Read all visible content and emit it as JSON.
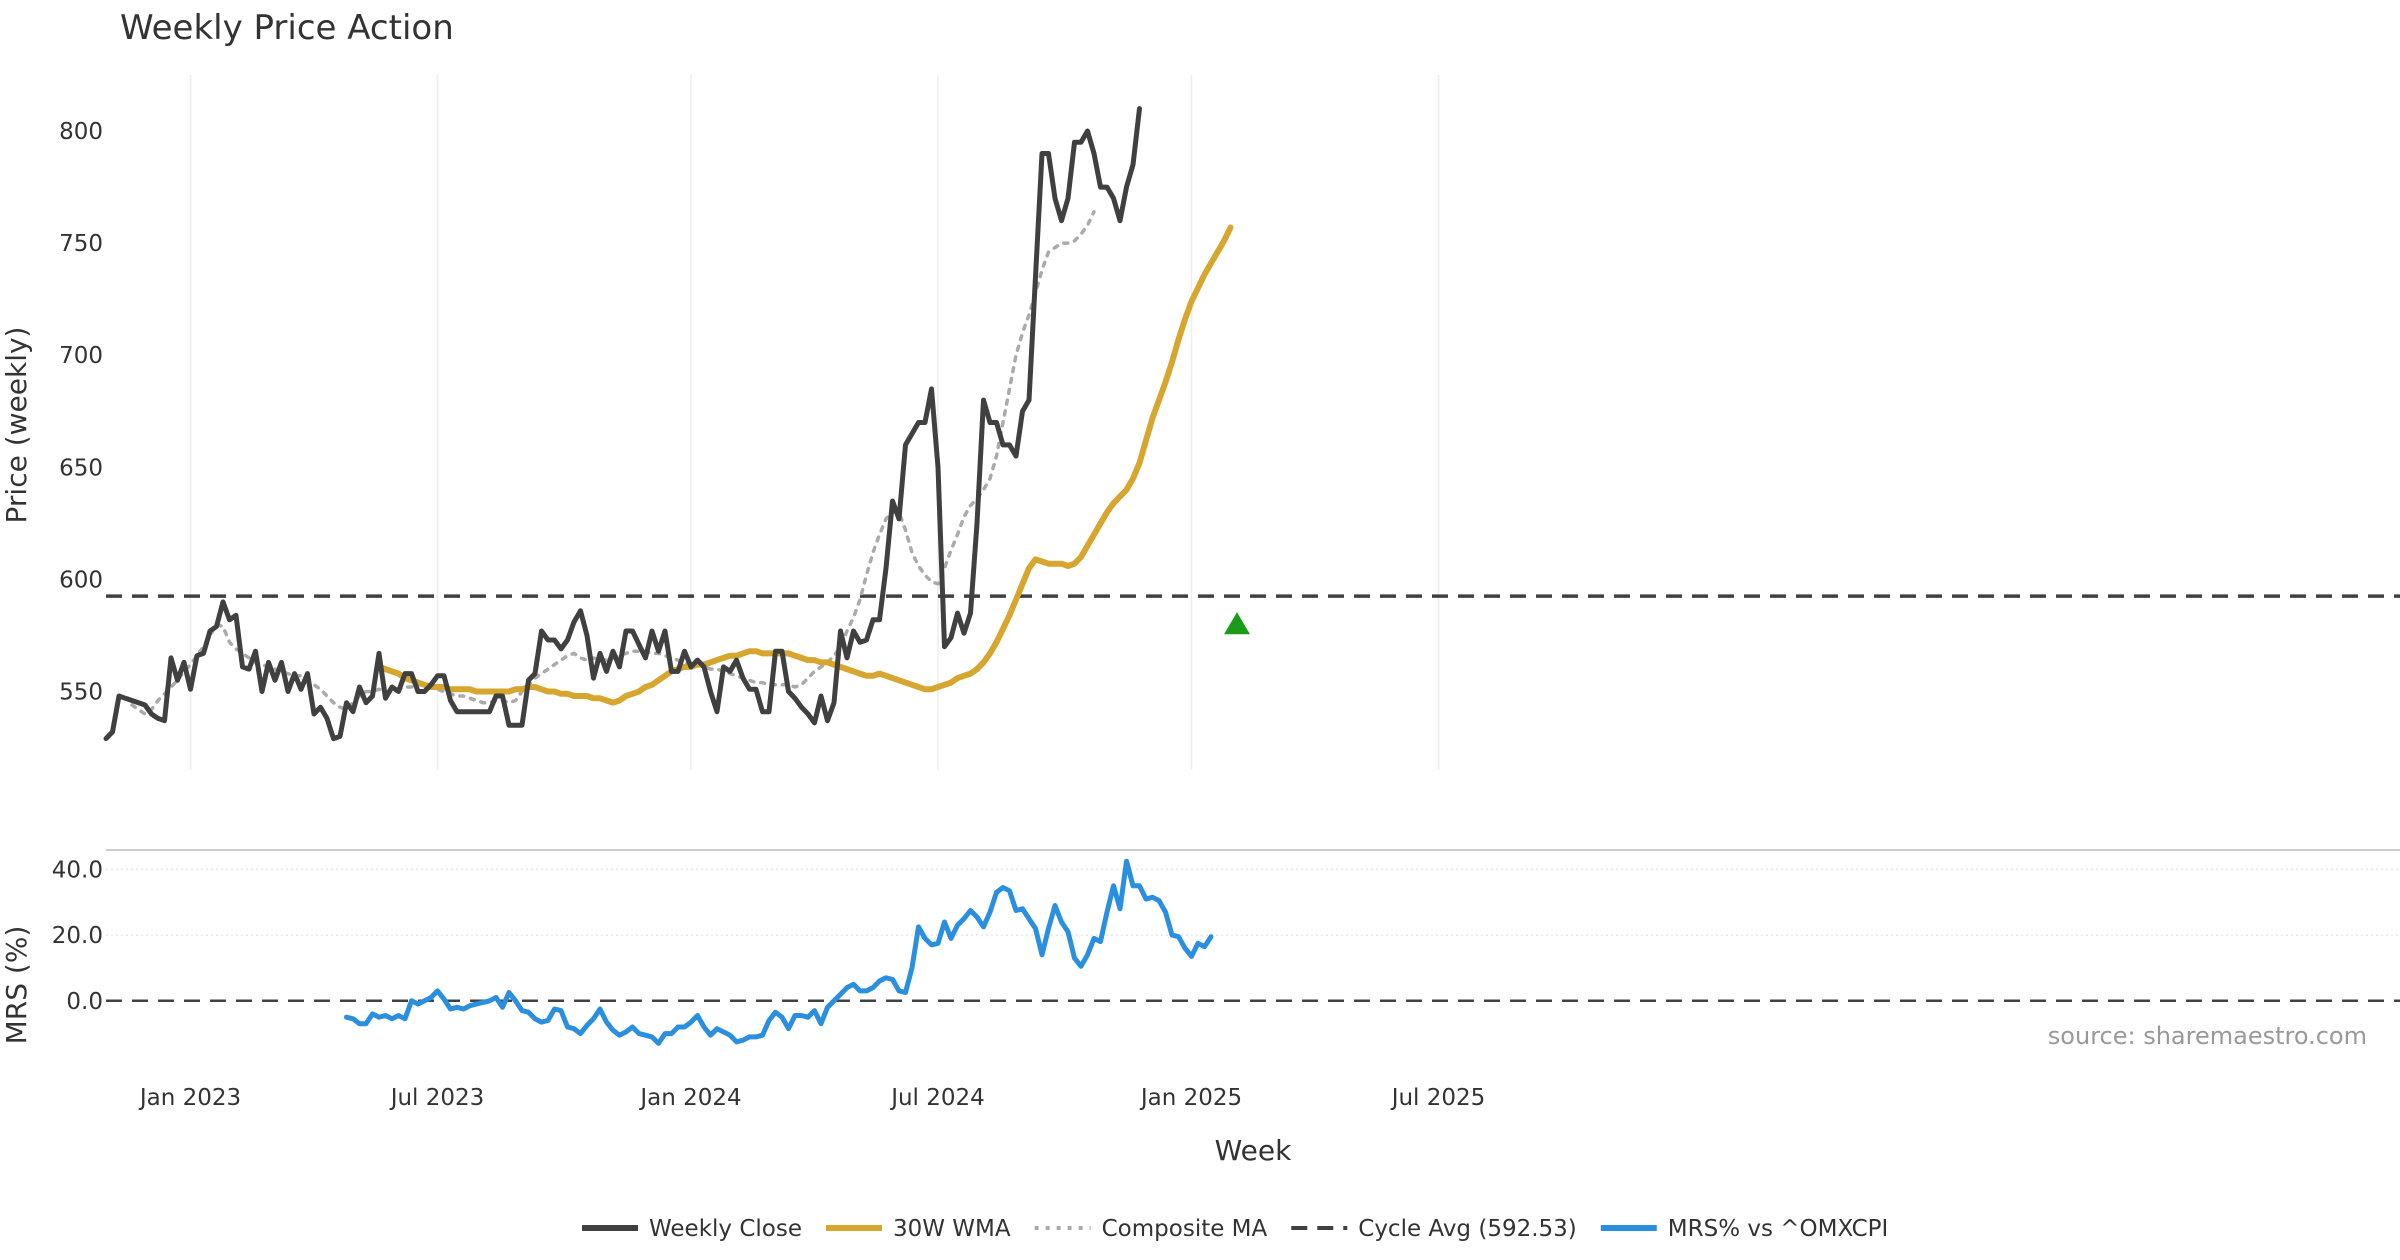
{
  "chart_data": {
    "type": "line",
    "title": "Weekly Price Action",
    "xlabel": "Week",
    "x_ticks": [
      {
        "label": "Jan 2023",
        "week": 13
      },
      {
        "label": "Jul 2023",
        "week": 51
      },
      {
        "label": "Jan 2024",
        "week": 90
      },
      {
        "label": "Jul 2024",
        "week": 128
      },
      {
        "label": "Jan 2025",
        "week": 167
      },
      {
        "label": "Jul 2025",
        "week": 205
      }
    ],
    "price_panel": {
      "ylabel": "Price (weekly)",
      "ylim": [
        515,
        825
      ],
      "yticks": [
        550,
        600,
        650,
        700,
        750,
        800
      ],
      "yticks_label": [
        "550",
        "600",
        "650",
        "700",
        "750",
        "800"
      ],
      "series": [
        {
          "name": "Weekly Close",
          "color": "#404040",
          "style": "solid",
          "start_week": 0,
          "values": [
            529,
            532,
            548,
            547,
            546,
            545,
            544,
            540,
            538,
            537,
            565,
            555,
            563,
            551,
            566,
            567,
            577,
            579,
            590,
            582,
            584,
            561,
            560,
            568,
            550,
            563,
            555,
            563,
            550,
            558,
            551,
            558,
            540,
            543,
            538,
            529,
            530,
            545,
            541,
            552,
            545,
            548,
            567,
            547,
            552,
            550,
            558,
            558,
            550,
            550,
            553,
            557,
            557,
            546,
            541,
            541,
            541,
            541,
            541,
            541,
            548,
            548,
            535,
            535,
            535,
            555,
            558,
            577,
            573,
            573,
            569,
            573,
            581,
            586,
            575,
            556,
            567,
            559,
            568,
            561,
            577,
            577,
            571,
            565,
            577,
            568,
            577,
            559,
            559,
            568,
            561,
            564,
            561,
            550,
            541,
            561,
            559,
            564,
            556,
            551,
            551,
            541,
            541,
            568,
            568,
            550,
            547,
            543,
            540,
            536,
            548,
            537,
            545,
            577,
            565,
            577,
            572,
            573,
            582,
            582,
            605,
            635,
            627,
            660,
            665,
            670,
            670,
            685,
            650,
            570,
            574,
            585,
            576,
            585,
            625,
            680,
            670,
            670,
            660,
            660,
            655,
            675,
            680,
            735,
            790,
            790,
            770,
            760,
            770,
            795,
            795,
            800,
            790,
            775,
            775,
            770,
            760,
            775,
            785,
            810
          ]
        },
        {
          "name": "30W WMA",
          "color": "#d6a62e",
          "style": "solid",
          "start_week": 42,
          "values": [
            561,
            560,
            559,
            558,
            556,
            555,
            554,
            553,
            552,
            552,
            552,
            551,
            551,
            551,
            551,
            550,
            550,
            550,
            550,
            550,
            550,
            551,
            551,
            552,
            552,
            551,
            550,
            550,
            549,
            549,
            548,
            548,
            548,
            547,
            547,
            546,
            545,
            546,
            548,
            549,
            550,
            552,
            553,
            555,
            557,
            559,
            560,
            561,
            561,
            562,
            562,
            563,
            564,
            565,
            566,
            566,
            567,
            568,
            568,
            567,
            567,
            567,
            567,
            567,
            566,
            565,
            564,
            564,
            563,
            563,
            562,
            561,
            560,
            559,
            558,
            557,
            557,
            558,
            557,
            556,
            555,
            554,
            553,
            552,
            551,
            551,
            552,
            553,
            554,
            556,
            557,
            558,
            560,
            563,
            567,
            572,
            578,
            584,
            591,
            598,
            605,
            609,
            608,
            607,
            607,
            607,
            606,
            607,
            610,
            615,
            620,
            625,
            630,
            634,
            637,
            640,
            645,
            652,
            662,
            672,
            680,
            688,
            697,
            707,
            716,
            724,
            730,
            736,
            741,
            746,
            751,
            757
          ]
        },
        {
          "name": "Composite MA",
          "color": "#aaaaaa",
          "style": "dotted",
          "start_week": 4,
          "values": [
            544,
            542,
            540,
            542,
            546,
            549,
            552,
            555,
            559,
            562,
            566,
            570,
            575,
            580,
            579,
            572,
            569,
            567,
            565,
            563,
            562,
            561,
            560,
            559,
            558,
            557,
            557,
            555,
            553,
            551,
            548,
            545,
            543,
            542,
            545,
            548,
            550,
            550,
            551,
            550,
            550,
            551,
            552,
            552,
            553,
            553,
            553,
            551,
            550,
            549,
            548,
            548,
            547,
            546,
            545,
            545,
            546,
            546,
            545,
            546,
            550,
            553,
            556,
            558,
            560,
            562,
            564,
            566,
            567,
            565,
            564,
            565,
            564,
            564,
            565,
            566,
            567,
            568,
            568,
            568,
            567,
            567,
            566,
            565,
            564,
            563,
            562,
            562,
            561,
            560,
            560,
            559,
            558,
            557,
            556,
            555,
            554,
            554,
            553,
            553,
            553,
            553,
            552,
            553,
            556,
            559,
            561,
            563,
            566,
            570,
            577,
            583,
            591,
            602,
            612,
            620,
            627,
            630,
            630,
            622,
            612,
            606,
            602,
            599,
            598,
            605,
            613,
            620,
            628,
            633,
            636,
            640,
            645,
            655,
            670,
            685,
            700,
            710,
            718,
            728,
            738,
            746,
            748,
            750,
            750,
            751,
            754,
            758,
            764
          ]
        },
        {
          "name": "Cycle Avg (592.53)",
          "color": "#404040",
          "style": "dashed",
          "constant": 592.53
        }
      ],
      "markers": [
        {
          "type": "triangle-up",
          "color": "#1a9c1a",
          "week": 174,
          "value": 580
        }
      ]
    },
    "mrs_panel": {
      "ylabel": "MRS (%)",
      "ylim": [
        -15,
        45
      ],
      "yticks": [
        0,
        20,
        40
      ],
      "yticks_label": [
        "0.0",
        "20.0",
        "40.0"
      ],
      "zero_line": 0,
      "series": [
        {
          "name": "MRS% vs ^OMXCPI",
          "color": "#2b8fe0",
          "style": "solid",
          "start_week": 37,
          "values": [
            -5,
            -5.5,
            -7,
            -7,
            -4,
            -5,
            -4.5,
            -5.5,
            -4.5,
            -5.5,
            0,
            -1,
            0,
            1,
            3,
            0.5,
            -2.5,
            -2,
            -2.5,
            -1.5,
            -1,
            -0.5,
            0,
            1,
            -2,
            2.5,
            0,
            -3,
            -3.5,
            -5.5,
            -6.5,
            -6,
            -2.5,
            -3,
            -8,
            -8.5,
            -10,
            -7.5,
            -5.5,
            -2.5,
            -6.5,
            -9,
            -10.5,
            -9.5,
            -8,
            -10,
            -10.5,
            -11,
            -13,
            -10,
            -10,
            -8,
            -8,
            -6.5,
            -4.5,
            -8,
            -10.5,
            -8.5,
            -9.5,
            -10.5,
            -12.5,
            -12,
            -11,
            -11,
            -10.5,
            -6,
            -3.5,
            -5,
            -8.5,
            -4.5,
            -4.5,
            -5,
            -3,
            -7,
            -2,
            0,
            2,
            4,
            5,
            3,
            3,
            4,
            6,
            7,
            6.5,
            3,
            2.5,
            10,
            22.5,
            19,
            17,
            17.5,
            24,
            19,
            23,
            25,
            27.5,
            25.5,
            22.5,
            27,
            33,
            34.5,
            33.5,
            27.5,
            28,
            25,
            22,
            14,
            22,
            29,
            24,
            21,
            13,
            10.5,
            14,
            19,
            18,
            27,
            35,
            28,
            42.5,
            35,
            35,
            31,
            31.5,
            30.5,
            27,
            20,
            19.5,
            16,
            13.5,
            17.5,
            16.5,
            19.5
          ]
        }
      ]
    },
    "legend": [
      "Weekly Close",
      "30W WMA",
      "Composite MA",
      "Cycle Avg (592.53)",
      "MRS% vs ^OMXCPI"
    ],
    "annotation": "source: sharemaestro.com"
  }
}
